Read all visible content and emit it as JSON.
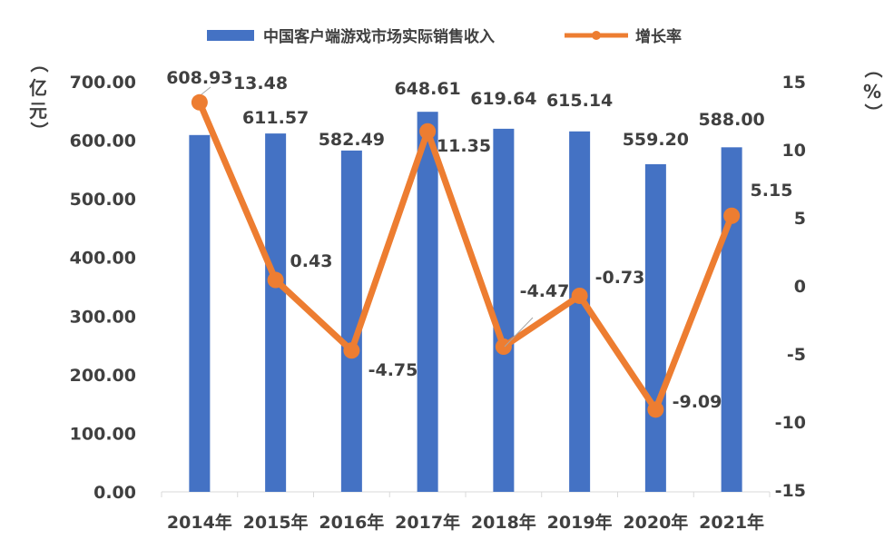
{
  "chart_data": {
    "type": "bar",
    "categories": [
      "2014年",
      "2015年",
      "2016年",
      "2017年",
      "2018年",
      "2019年",
      "2020年",
      "2021年"
    ],
    "series": [
      {
        "name": "中国客户端游戏市场实际销售收入",
        "type": "bar",
        "axis": "left",
        "color": "#4472C4",
        "values": [
          608.93,
          611.57,
          582.49,
          648.61,
          619.64,
          615.14,
          559.2,
          588.0
        ],
        "labels": [
          "608.93",
          "611.57",
          "582.49",
          "648.61",
          "619.64",
          "615.14",
          "559.20",
          "588.00"
        ]
      },
      {
        "name": "增长率",
        "type": "line",
        "axis": "right",
        "color": "#ED7D31",
        "values": [
          13.48,
          0.43,
          -4.75,
          11.35,
          -4.47,
          -0.73,
          -9.09,
          5.15
        ],
        "labels": [
          "13.48",
          "0.43",
          "-4.75",
          "11.35",
          "-4.47",
          "-0.73",
          "-9.09",
          "5.15"
        ]
      }
    ],
    "y_left": {
      "unit_chars": [
        "（",
        "亿",
        "元",
        "）"
      ],
      "range": [
        0,
        700
      ],
      "ticks": [
        "0.00",
        "100.00",
        "200.00",
        "300.00",
        "400.00",
        "500.00",
        "600.00",
        "700.00"
      ]
    },
    "y_right": {
      "unit_chars": [
        "（",
        "%",
        "）"
      ],
      "range": [
        -15,
        15
      ],
      "ticks": [
        "-15",
        "-10",
        "-5",
        "0",
        "5",
        "10",
        "15"
      ]
    },
    "legend_position": "top",
    "grid": false
  }
}
